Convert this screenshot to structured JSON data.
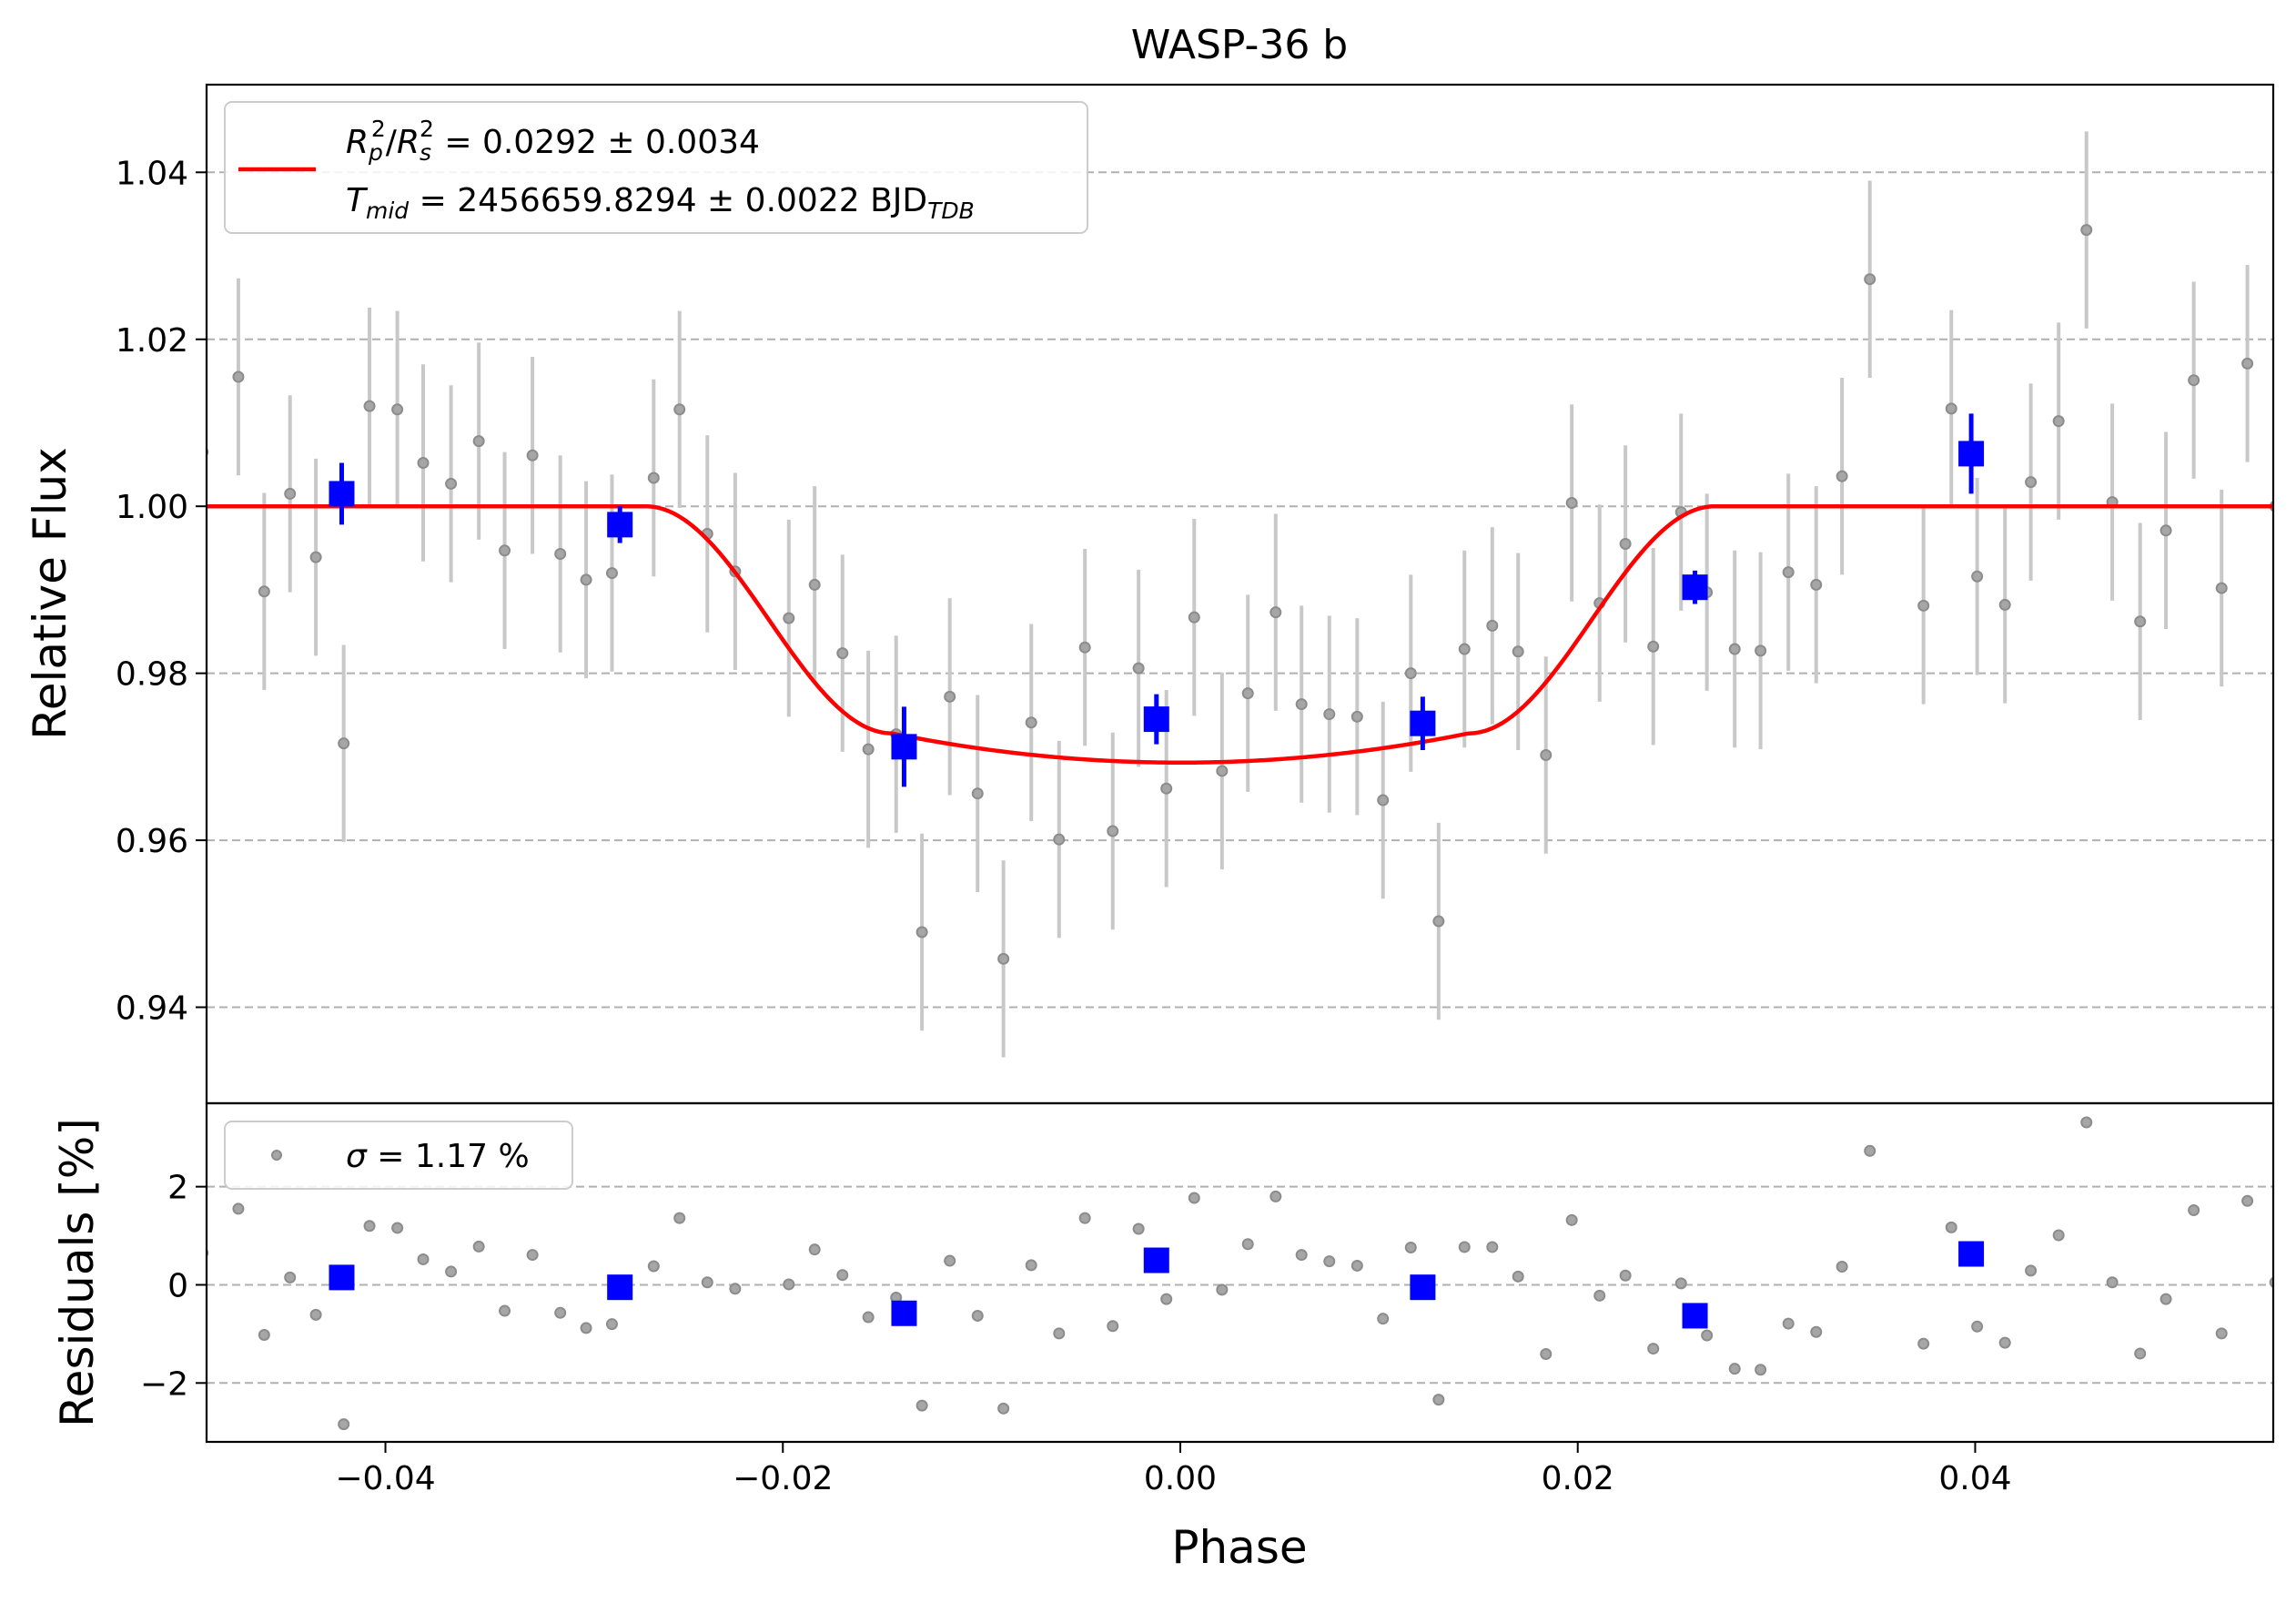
{
  "chart_data": [
    {
      "type": "scatter",
      "panel": "lightcurve",
      "title": "WASP-36 b",
      "xlabel": "",
      "ylabel": "Relative Flux",
      "xlim": [
        -0.049,
        0.055
      ],
      "ylim": [
        0.9285,
        1.0505
      ],
      "y_ticks": [
        0.94,
        0.96,
        0.98,
        1.0,
        1.02,
        1.04
      ],
      "y_tick_labels": [
        "0.94",
        "0.96",
        "0.98",
        "1.00",
        "1.02",
        "1.04"
      ],
      "grid": "horizontal dashed",
      "legend_position": "top-left",
      "legend": {
        "model_line": {
          "rp_symbol": "R",
          "rp_sub": "p",
          "rp_sup": "2",
          "rs_symbol": "R",
          "rs_sub": "s",
          "rs_sup": "2",
          "rp_value_text": " = 0.0292 ± 0.0034",
          "t_symbol": "T",
          "t_sub": "mid",
          "t_value_text": " = 2456659.8294 ± 0.0022 BJD",
          "t_unit_sub": "TDB"
        }
      },
      "colors": {
        "data": "#8c8c8c",
        "errorbar": "#c8c8c8",
        "binned": "#0000ff",
        "model": "#ff0000",
        "grid": "#b0b0b0"
      },
      "model": {
        "name": "transit model",
        "baseline": 1.0,
        "depth_min": 0.9693,
        "t1": -0.0269,
        "t2": -0.0145,
        "t3": 0.0145,
        "t4": 0.0269
      },
      "data_points": [
        {
          "x": -0.0492,
          "y": 1.0065,
          "err": 0.011
        },
        {
          "x": -0.0474,
          "y": 1.0155,
          "err": 0.0118
        },
        {
          "x": -0.0461,
          "y": 0.9898,
          "err": 0.0118
        },
        {
          "x": -0.0448,
          "y": 1.0015,
          "err": 0.0118
        },
        {
          "x": -0.0435,
          "y": 0.9939,
          "err": 0.0118
        },
        {
          "x": -0.0421,
          "y": 0.9716,
          "err": 0.0118
        },
        {
          "x": -0.0408,
          "y": 1.012,
          "err": 0.0118
        },
        {
          "x": -0.0394,
          "y": 1.0116,
          "err": 0.0118
        },
        {
          "x": -0.0381,
          "y": 1.0052,
          "err": 0.0118
        },
        {
          "x": -0.0367,
          "y": 1.0027,
          "err": 0.0118
        },
        {
          "x": -0.0353,
          "y": 1.0078,
          "err": 0.0118
        },
        {
          "x": -0.034,
          "y": 0.9947,
          "err": 0.0118
        },
        {
          "x": -0.0326,
          "y": 1.0061,
          "err": 0.0118
        },
        {
          "x": -0.0312,
          "y": 0.9943,
          "err": 0.0118
        },
        {
          "x": -0.0299,
          "y": 0.9912,
          "err": 0.0118
        },
        {
          "x": -0.0286,
          "y": 0.992,
          "err": 0.0118
        },
        {
          "x": -0.0265,
          "y": 1.0034,
          "err": 0.0118
        },
        {
          "x": -0.0252,
          "y": 1.0116,
          "err": 0.0118
        },
        {
          "x": -0.0238,
          "y": 0.9967,
          "err": 0.0118
        },
        {
          "x": -0.0224,
          "y": 0.9922,
          "err": 0.0118
        },
        {
          "x": -0.0197,
          "y": 0.9866,
          "err": 0.0118
        },
        {
          "x": -0.0184,
          "y": 0.9906,
          "err": 0.0118
        },
        {
          "x": -0.017,
          "y": 0.9824,
          "err": 0.0118
        },
        {
          "x": -0.0157,
          "y": 0.9709,
          "err": 0.0118
        },
        {
          "x": -0.0143,
          "y": 0.9727,
          "err": 0.0118
        },
        {
          "x": -0.013,
          "y": 0.949,
          "err": 0.0118
        },
        {
          "x": -0.0116,
          "y": 0.9772,
          "err": 0.0118
        },
        {
          "x": -0.0102,
          "y": 0.9656,
          "err": 0.0118
        },
        {
          "x": -0.0089,
          "y": 0.9458,
          "err": 0.0118
        },
        {
          "x": -0.0075,
          "y": 0.9741,
          "err": 0.0118
        },
        {
          "x": -0.0061,
          "y": 0.9601,
          "err": 0.0118
        },
        {
          "x": -0.0048,
          "y": 0.9831,
          "err": 0.0118
        },
        {
          "x": -0.0034,
          "y": 0.9611,
          "err": 0.0118
        },
        {
          "x": -0.0021,
          "y": 0.9806,
          "err": 0.0118
        },
        {
          "x": -0.0007,
          "y": 0.9662,
          "err": 0.0118
        },
        {
          "x": 0.0007,
          "y": 0.9867,
          "err": 0.0118
        },
        {
          "x": 0.0021,
          "y": 0.9683,
          "err": 0.0118
        },
        {
          "x": 0.0034,
          "y": 0.9776,
          "err": 0.0118
        },
        {
          "x": 0.0048,
          "y": 0.9873,
          "err": 0.0118
        },
        {
          "x": 0.0061,
          "y": 0.9763,
          "err": 0.0118
        },
        {
          "x": 0.0075,
          "y": 0.9751,
          "err": 0.0118
        },
        {
          "x": 0.0089,
          "y": 0.9748,
          "err": 0.0118
        },
        {
          "x": 0.0102,
          "y": 0.9648,
          "err": 0.0118
        },
        {
          "x": 0.0116,
          "y": 0.98,
          "err": 0.0118
        },
        {
          "x": 0.013,
          "y": 0.9503,
          "err": 0.0118
        },
        {
          "x": 0.0143,
          "y": 0.9829,
          "err": 0.0118
        },
        {
          "x": 0.0157,
          "y": 0.9857,
          "err": 0.0118
        },
        {
          "x": 0.017,
          "y": 0.9826,
          "err": 0.0118
        },
        {
          "x": 0.0184,
          "y": 0.9702,
          "err": 0.0118
        },
        {
          "x": 0.0197,
          "y": 1.0004,
          "err": 0.0118
        },
        {
          "x": 0.0211,
          "y": 0.9884,
          "err": 0.0118
        },
        {
          "x": 0.0224,
          "y": 0.9955,
          "err": 0.0118
        },
        {
          "x": 0.0238,
          "y": 0.9832,
          "err": 0.0118
        },
        {
          "x": 0.0252,
          "y": 0.9993,
          "err": 0.0118
        },
        {
          "x": 0.0265,
          "y": 0.9897,
          "err": 0.0118
        },
        {
          "x": 0.0279,
          "y": 0.9829,
          "err": 0.0118
        },
        {
          "x": 0.0292,
          "y": 0.9827,
          "err": 0.0118
        },
        {
          "x": 0.0306,
          "y": 0.9921,
          "err": 0.0118
        },
        {
          "x": 0.032,
          "y": 0.9906,
          "err": 0.0118
        },
        {
          "x": 0.0333,
          "y": 1.0036,
          "err": 0.0118
        },
        {
          "x": 0.0347,
          "y": 1.0272,
          "err": 0.0118
        },
        {
          "x": 0.0374,
          "y": 0.9881,
          "err": 0.0118
        },
        {
          "x": 0.0388,
          "y": 1.0117,
          "err": 0.0118
        },
        {
          "x": 0.0401,
          "y": 0.9916,
          "err": 0.0118
        },
        {
          "x": 0.0415,
          "y": 0.9882,
          "err": 0.0118
        },
        {
          "x": 0.0428,
          "y": 1.0029,
          "err": 0.0118
        },
        {
          "x": 0.0442,
          "y": 1.0102,
          "err": 0.0118
        },
        {
          "x": 0.0456,
          "y": 1.0331,
          "err": 0.0118
        },
        {
          "x": 0.0469,
          "y": 1.0005,
          "err": 0.0118
        },
        {
          "x": 0.0483,
          "y": 0.9862,
          "err": 0.0118
        },
        {
          "x": 0.0496,
          "y": 0.9971,
          "err": 0.0118
        },
        {
          "x": 0.051,
          "y": 1.0151,
          "err": 0.0118
        },
        {
          "x": 0.0524,
          "y": 0.9902,
          "err": 0.0118
        },
        {
          "x": 0.0537,
          "y": 1.0171,
          "err": 0.0118
        },
        {
          "x": 0.0551,
          "y": 1.0,
          "err": 0.0118
        }
      ],
      "binned_points": [
        {
          "x": -0.0422,
          "y": 1.0015,
          "err": 0.0037
        },
        {
          "x": -0.0282,
          "y": 0.9978,
          "err": 0.0022
        },
        {
          "x": -0.0139,
          "y": 0.9712,
          "err": 0.0048
        },
        {
          "x": -0.0012,
          "y": 0.9745,
          "err": 0.003
        },
        {
          "x": 0.0122,
          "y": 0.974,
          "err": 0.0032
        },
        {
          "x": 0.0259,
          "y": 0.9903,
          "err": 0.002
        },
        {
          "x": 0.0398,
          "y": 1.0063,
          "err": 0.0048
        }
      ]
    },
    {
      "type": "scatter",
      "panel": "residuals",
      "xlabel": "Phase",
      "ylabel": "Residuals [%]",
      "xlim": [
        -0.049,
        0.055
      ],
      "ylim": [
        -3.2,
        3.7
      ],
      "x_ticks": [
        -0.04,
        -0.02,
        0.0,
        0.02,
        0.04
      ],
      "x_tick_labels": [
        "−0.04",
        "−0.02",
        "0.00",
        "0.02",
        "0.04"
      ],
      "y_ticks": [
        -2,
        0,
        2
      ],
      "y_tick_labels": [
        "−2",
        "0",
        "2"
      ],
      "grid": "horizontal dashed",
      "legend_position": "top-left",
      "legend": {
        "sigma_symbol": "σ",
        "sigma_text": " = 1.17 %"
      },
      "data_points": [
        {
          "x": -0.0492,
          "y": 0.65
        },
        {
          "x": -0.0474,
          "y": 1.55
        },
        {
          "x": -0.0461,
          "y": -1.02
        },
        {
          "x": -0.0448,
          "y": 0.15
        },
        {
          "x": -0.0435,
          "y": -0.61
        },
        {
          "x": -0.0421,
          "y": -2.84
        },
        {
          "x": -0.0408,
          "y": 1.2
        },
        {
          "x": -0.0394,
          "y": 1.16
        },
        {
          "x": -0.0381,
          "y": 0.52
        },
        {
          "x": -0.0367,
          "y": 0.27
        },
        {
          "x": -0.0353,
          "y": 0.78
        },
        {
          "x": -0.034,
          "y": -0.53
        },
        {
          "x": -0.0326,
          "y": 0.61
        },
        {
          "x": -0.0312,
          "y": -0.57
        },
        {
          "x": -0.0299,
          "y": -0.88
        },
        {
          "x": -0.0286,
          "y": -0.8
        },
        {
          "x": -0.0265,
          "y": 0.38
        },
        {
          "x": -0.0252,
          "y": 1.36
        },
        {
          "x": -0.0238,
          "y": 0.05
        },
        {
          "x": -0.0224,
          "y": -0.08
        },
        {
          "x": -0.0197,
          "y": 0.01
        },
        {
          "x": -0.0184,
          "y": 0.72
        },
        {
          "x": -0.017,
          "y": 0.2
        },
        {
          "x": -0.0157,
          "y": -0.66
        },
        {
          "x": -0.0143,
          "y": -0.26
        },
        {
          "x": -0.013,
          "y": -2.46
        },
        {
          "x": -0.0116,
          "y": 0.49
        },
        {
          "x": -0.0102,
          "y": -0.63
        },
        {
          "x": -0.0089,
          "y": -2.52
        },
        {
          "x": -0.0075,
          "y": 0.4
        },
        {
          "x": -0.0061,
          "y": -0.99
        },
        {
          "x": -0.0048,
          "y": 1.36
        },
        {
          "x": -0.0034,
          "y": -0.84
        },
        {
          "x": -0.0021,
          "y": 1.14
        },
        {
          "x": -0.0007,
          "y": -0.29
        },
        {
          "x": 0.0007,
          "y": 1.77
        },
        {
          "x": 0.0021,
          "y": -0.1
        },
        {
          "x": 0.0034,
          "y": 0.83
        },
        {
          "x": 0.0048,
          "y": 1.8
        },
        {
          "x": 0.0061,
          "y": 0.61
        },
        {
          "x": 0.0075,
          "y": 0.48
        },
        {
          "x": 0.0089,
          "y": 0.39
        },
        {
          "x": 0.0102,
          "y": -0.69
        },
        {
          "x": 0.0116,
          "y": 0.76
        },
        {
          "x": 0.013,
          "y": -2.34
        },
        {
          "x": 0.0143,
          "y": 0.77
        },
        {
          "x": 0.0157,
          "y": 0.77
        },
        {
          "x": 0.017,
          "y": 0.17
        },
        {
          "x": 0.0184,
          "y": -1.41
        },
        {
          "x": 0.0197,
          "y": 1.32
        },
        {
          "x": 0.0211,
          "y": -0.22
        },
        {
          "x": 0.0224,
          "y": 0.19
        },
        {
          "x": 0.0238,
          "y": -1.3
        },
        {
          "x": 0.0252,
          "y": 0.03
        },
        {
          "x": 0.0265,
          "y": -1.03
        },
        {
          "x": 0.0279,
          "y": -1.71
        },
        {
          "x": 0.0292,
          "y": -1.73
        },
        {
          "x": 0.0306,
          "y": -0.79
        },
        {
          "x": 0.032,
          "y": -0.96
        },
        {
          "x": 0.0333,
          "y": 0.37
        },
        {
          "x": 0.0347,
          "y": 2.73
        },
        {
          "x": 0.0374,
          "y": -1.2
        },
        {
          "x": 0.0388,
          "y": 1.17
        },
        {
          "x": 0.0401,
          "y": -0.85
        },
        {
          "x": 0.0415,
          "y": -1.18
        },
        {
          "x": 0.0428,
          "y": 0.29
        },
        {
          "x": 0.0442,
          "y": 1.01
        },
        {
          "x": 0.0456,
          "y": 3.31
        },
        {
          "x": 0.0469,
          "y": 0.05
        },
        {
          "x": 0.0483,
          "y": -1.4
        },
        {
          "x": 0.0496,
          "y": -0.29
        },
        {
          "x": 0.051,
          "y": 1.52
        },
        {
          "x": 0.0524,
          "y": -0.99
        },
        {
          "x": 0.0537,
          "y": 1.71
        },
        {
          "x": 0.0551,
          "y": 0.05
        }
      ],
      "binned_points": [
        {
          "x": -0.0422,
          "y": 0.15
        },
        {
          "x": -0.0282,
          "y": -0.05
        },
        {
          "x": -0.0139,
          "y": -0.58
        },
        {
          "x": -0.0012,
          "y": 0.5
        },
        {
          "x": 0.0122,
          "y": -0.05
        },
        {
          "x": 0.0259,
          "y": -0.63
        },
        {
          "x": 0.0398,
          "y": 0.63
        }
      ]
    }
  ]
}
